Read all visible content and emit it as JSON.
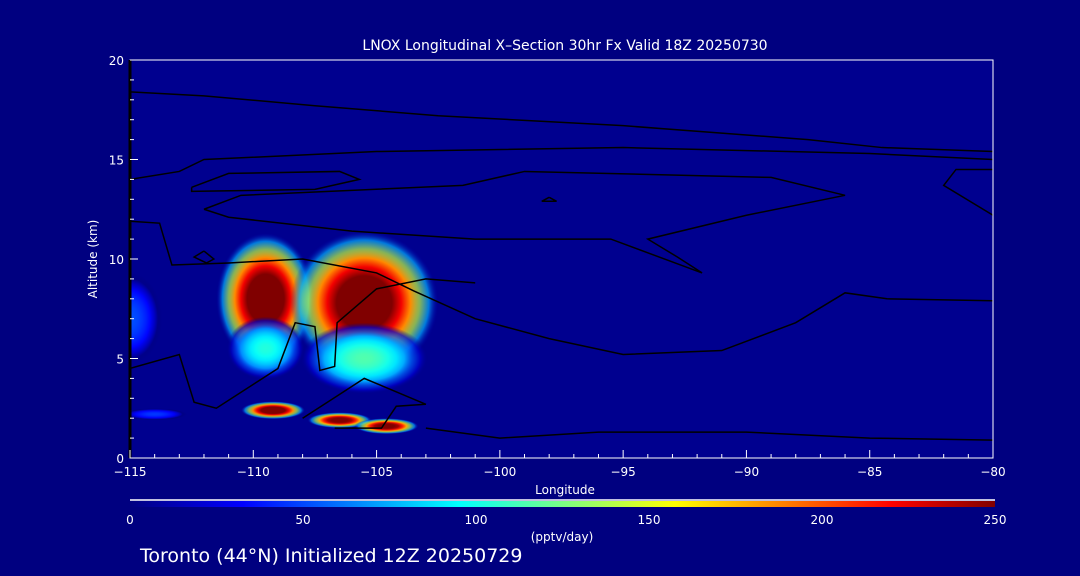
{
  "chart_data": {
    "type": "heatmap",
    "title": "LNOX Longitudinal X–Section 30hr  Fx Valid 18Z 20250730",
    "xlabel": "Longitude",
    "ylabel": "Altitude (km)",
    "xlim": [
      -115,
      -80
    ],
    "ylim": [
      0,
      20
    ],
    "xticks": [
      -115,
      -110,
      -105,
      -100,
      -95,
      -90,
      -85,
      -80
    ],
    "xtick_labels": [
      "−115",
      "−110",
      "−105",
      "−100",
      "−95",
      "−90",
      "−85",
      "−80"
    ],
    "yticks": [
      0,
      5,
      10,
      15,
      20
    ],
    "ytick_labels": [
      "0",
      "5",
      "10",
      "15",
      "20"
    ],
    "colorbar": {
      "range": [
        0,
        250
      ],
      "ticks": [
        0,
        50,
        100,
        150,
        200,
        250
      ],
      "tick_labels": [
        "0",
        "50",
        "100",
        "150",
        "200",
        "250"
      ],
      "units": "(pptv/day)",
      "colormap": "jet"
    },
    "features": [
      {
        "lon": -109.5,
        "alt": 8.0,
        "rx": 2.0,
        "ry": 3.3,
        "peak": 250
      },
      {
        "lon": -105.5,
        "alt": 7.8,
        "rx": 3.0,
        "ry": 3.6,
        "peak": 250
      },
      {
        "lon": -105.5,
        "alt": 5.0,
        "rx": 2.6,
        "ry": 1.8,
        "peak": 100
      },
      {
        "lon": -109.5,
        "alt": 5.5,
        "rx": 1.6,
        "ry": 1.6,
        "peak": 90
      },
      {
        "lon": -109.2,
        "alt": 2.4,
        "rx": 1.3,
        "ry": 0.45,
        "peak": 250
      },
      {
        "lon": -106.5,
        "alt": 1.9,
        "rx": 1.3,
        "ry": 0.4,
        "peak": 240
      },
      {
        "lon": -104.6,
        "alt": 1.6,
        "rx": 1.3,
        "ry": 0.4,
        "peak": 240
      },
      {
        "lon": -115.0,
        "alt": 7.0,
        "rx": 1.3,
        "ry": 2.3,
        "peak": 45
      },
      {
        "lon": -114.0,
        "alt": 2.2,
        "rx": 1.3,
        "ry": 0.3,
        "peak": 40
      }
    ],
    "contours": [
      {
        "label": "0",
        "points": [
          [
            -115,
            18.4
          ],
          [
            -112,
            18.2
          ],
          [
            -107.5,
            17.7
          ],
          [
            -102.5,
            17.2
          ],
          [
            -95,
            16.7
          ],
          [
            -87.5,
            16.0
          ],
          [
            -84.5,
            15.6
          ],
          [
            -80,
            15.4
          ]
        ]
      },
      {
        "label": "0",
        "points": [
          [
            -115,
            14.0
          ],
          [
            -113,
            14.4
          ],
          [
            -112,
            15.0
          ],
          [
            -105,
            15.4
          ],
          [
            -95,
            15.6
          ],
          [
            -85,
            15.3
          ],
          [
            -80,
            15.0
          ]
        ]
      },
      {
        "label": "0",
        "points": [
          [
            -112.5,
            13.6
          ],
          [
            -111,
            14.3
          ],
          [
            -106.5,
            14.4
          ],
          [
            -105.7,
            14.0
          ],
          [
            -107.5,
            13.5
          ],
          [
            -112.5,
            13.4
          ],
          [
            -112.5,
            13.6
          ]
        ]
      },
      {
        "label": "0",
        "points": [
          [
            -112,
            12.5
          ],
          [
            -110.5,
            13.2
          ],
          [
            -101.5,
            13.7
          ],
          [
            -99,
            14.4
          ],
          [
            -89,
            14.1
          ],
          [
            -86,
            13.2
          ],
          [
            -90,
            12.2
          ],
          [
            -94,
            11.0
          ],
          [
            -92.8,
            10.1
          ],
          [
            -91.8,
            9.3
          ],
          [
            -95.5,
            11.0
          ],
          [
            -101,
            11.0
          ],
          [
            -106,
            11.4
          ],
          [
            -111,
            12.1
          ],
          [
            -112,
            12.5
          ]
        ]
      },
      {
        "label": "0",
        "points": [
          [
            -115,
            11.9
          ],
          [
            -113.8,
            11.8
          ],
          [
            -113.3,
            9.7
          ],
          [
            -111,
            9.8
          ],
          [
            -108,
            10.0
          ],
          [
            -105,
            9.3
          ],
          [
            -103.5,
            8.4
          ],
          [
            -101,
            7.0
          ],
          [
            -98,
            6.0
          ],
          [
            -95,
            5.2
          ],
          [
            -91,
            5.4
          ],
          [
            -88,
            6.8
          ],
          [
            -86,
            8.3
          ],
          [
            -84.3,
            8.0
          ],
          [
            -80,
            7.9
          ]
        ]
      },
      {
        "label": "0",
        "points": [
          [
            -80,
            14.5
          ],
          [
            -81.5,
            14.5
          ],
          [
            -82,
            13.7
          ],
          [
            -80,
            12.2
          ]
        ]
      },
      {
        "label": "0",
        "points": [
          [
            -115,
            4.5
          ],
          [
            -113,
            5.2
          ],
          [
            -112.4,
            2.8
          ],
          [
            -111.5,
            2.5
          ],
          [
            -109,
            4.5
          ],
          [
            -108.3,
            6.8
          ],
          [
            -107.5,
            6.6
          ],
          [
            -107.3,
            4.4
          ],
          [
            -106.7,
            4.6
          ],
          [
            -106.6,
            6.8
          ],
          [
            -105,
            8.5
          ],
          [
            -103,
            9.0
          ],
          [
            -101,
            8.8
          ]
        ]
      },
      {
        "label": "0",
        "points": [
          [
            -108,
            2.0
          ],
          [
            -106.5,
            3.2
          ],
          [
            -105.5,
            4.0
          ],
          [
            -103,
            2.7
          ],
          [
            -104.2,
            2.6
          ],
          [
            -104.8,
            1.5
          ],
          [
            -106.7,
            1.5
          ]
        ]
      },
      {
        "label": "0",
        "points": [
          [
            -103,
            1.5
          ],
          [
            -100,
            1.0
          ],
          [
            -96,
            1.3
          ],
          [
            -90,
            1.3
          ],
          [
            -85,
            1.0
          ],
          [
            -80,
            0.9
          ]
        ]
      },
      {
        "label": "0",
        "points": [
          [
            -112,
            10.4
          ],
          [
            -111.6,
            10.0
          ],
          [
            -111.9,
            9.8
          ],
          [
            -112.4,
            10.1
          ],
          [
            -112,
            10.4
          ]
        ]
      },
      {
        "label": "0",
        "points": [
          [
            -98,
            13.1
          ],
          [
            -97.7,
            12.9
          ],
          [
            -98.3,
            12.9
          ],
          [
            -98,
            13.1
          ]
        ]
      }
    ]
  },
  "footer": "Toronto (44°N) Initialized 12Z 20250729"
}
